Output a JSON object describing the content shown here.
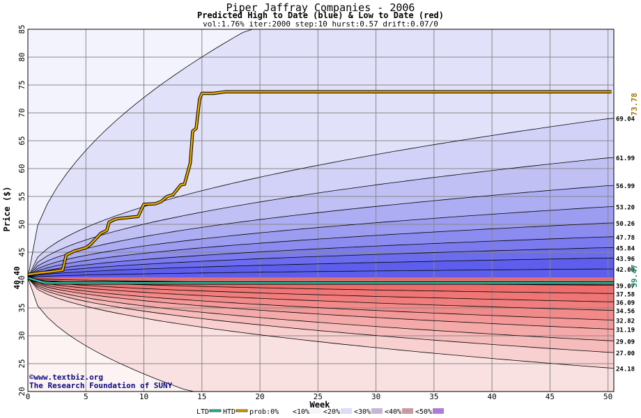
{
  "chart_data": {
    "type": "area",
    "title": "Piper Jaffray Companies - 2006",
    "subtitle": "Predicted High to Date (blue) &  Low to Date (red)",
    "params": "vol:1.76% iter:2000 step:10 hurst:0.57 drift:0.07/0",
    "xlabel": "Week",
    "ylabel": "Price ($)",
    "xlim": [
      0,
      50.5
    ],
    "ylim": [
      20,
      85
    ],
    "x_ticks": [
      0,
      5,
      10,
      15,
      20,
      25,
      30,
      35,
      40,
      45,
      50
    ],
    "y_ticks": [
      20,
      25,
      30,
      35,
      40,
      45,
      50,
      55,
      60,
      65,
      70,
      75,
      80,
      85
    ],
    "grid": true,
    "start_price": 40.4,
    "start_label": "40.40",
    "htd_value": 73.78,
    "htd_label": "73.78",
    "ltd_value": 39.47,
    "ltd_label": "39.47",
    "upper_outer": {
      "week0": 40.4,
      "end": 85,
      "end_week": 19
    },
    "upper_quantiles": [
      {
        "end": 69.04,
        "label": "69.04"
      },
      {
        "end": 61.99,
        "label": "61.99"
      },
      {
        "end": 56.99,
        "label": "56.99"
      },
      {
        "end": 53.2,
        "label": "53.20"
      },
      {
        "end": 50.26,
        "label": "50.26"
      },
      {
        "end": 47.78,
        "label": "47.78"
      },
      {
        "end": 45.84,
        "label": "45.84"
      },
      {
        "end": 43.96,
        "label": "43.96"
      },
      {
        "end": 42.0,
        "label": "42.00"
      }
    ],
    "lower_quantiles": [
      {
        "end": 39.07,
        "label": "39.07"
      },
      {
        "end": 37.58,
        "label": "37.58"
      },
      {
        "end": 36.09,
        "label": "36.09"
      },
      {
        "end": 34.56,
        "label": "34.56"
      },
      {
        "end": 32.82,
        "label": "32.82"
      },
      {
        "end": 31.19,
        "label": "31.19"
      },
      {
        "end": 29.09,
        "label": "29.09"
      },
      {
        "end": 27.0,
        "label": "27.00"
      },
      {
        "end": 24.18,
        "label": "24.18"
      }
    ],
    "lower_outer": {
      "week0": 40.4,
      "end": 20,
      "end_week": 14
    },
    "htd_series": {
      "name": "HTD",
      "x": [
        0,
        1,
        2,
        3,
        3.3,
        4,
        5,
        5.4,
        5.8,
        6.3,
        6.8,
        7,
        7.5,
        8,
        9.5,
        10,
        11,
        11.5,
        12,
        12.5,
        13,
        13.2,
        13.5,
        14,
        14.2,
        14.5,
        14.8,
        15,
        16,
        17,
        20,
        30,
        40,
        50.3
      ],
      "y": [
        41.0,
        41.3,
        41.5,
        41.8,
        44.5,
        45.2,
        45.8,
        46.4,
        47.3,
        48.4,
        48.9,
        50.4,
        50.9,
        51.1,
        51.4,
        53.6,
        53.7,
        54.1,
        55.0,
        55.3,
        56.6,
        57.1,
        57.2,
        61.0,
        66.7,
        67.2,
        72.5,
        73.5,
        73.5,
        73.78,
        73.78,
        73.78,
        73.78,
        73.78
      ]
    },
    "ltd_value_line": 39.47,
    "legend": [
      {
        "label": "LTD",
        "color": "#2fbf9f"
      },
      {
        "label": "HTD",
        "color": "#e8a800"
      },
      {
        "label": "prob:0%",
        "color": "#ffffff"
      },
      {
        "label": "<10%",
        "color": "#f4f4fb"
      },
      {
        "label": "<20%",
        "color": "#dcdcf6"
      },
      {
        "label": "<30%",
        "color": "#c8b4d8"
      },
      {
        "label": "<40%",
        "color": "#c89aa0"
      },
      {
        "label": "<50%",
        "color": "#b07ad8"
      }
    ],
    "watermark_1": "©www.textbiz.org",
    "watermark_2": "The Research Foundation of SUNY"
  },
  "colors": {
    "upper_fills": [
      "#f3f3fd",
      "#e1e1fa",
      "#d2d2f8",
      "#c0c0f5",
      "#adadf3",
      "#9c9cf1",
      "#8b8bf0",
      "#7b7bef",
      "#6c6cee",
      "#5e5eec"
    ],
    "lower_fills": [
      "#fdf3f3",
      "#fae1e1",
      "#f8d0d0",
      "#f6bcbc",
      "#f5aaaa",
      "#f39999",
      "#f28a8a",
      "#f17e7e",
      "#f07575",
      "#ef6d6d"
    ],
    "htd": "#e8a800",
    "ltd": "#2fbf9f",
    "htd_label": "#a07800",
    "ltd_label": "#1a8a6a"
  }
}
